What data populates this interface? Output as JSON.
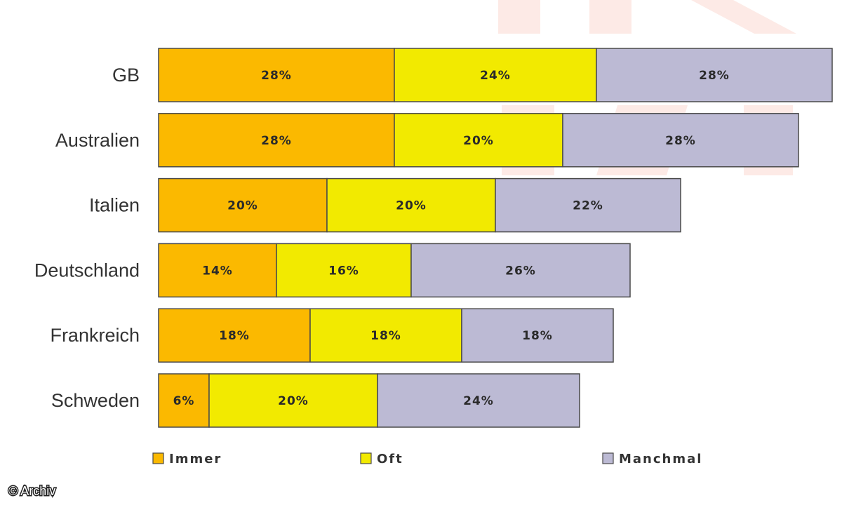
{
  "chart_data": {
    "type": "bar",
    "orientation": "horizontal",
    "stacked": true,
    "categories": [
      "GB",
      "Australien",
      "Italien",
      "Deutschland",
      "Frankreich",
      "Schweden"
    ],
    "series": [
      {
        "name": "Immer",
        "color": "#fbb900",
        "values": [
          28,
          28,
          20,
          14,
          18,
          6
        ]
      },
      {
        "name": "Oft",
        "color": "#f2ea00",
        "values": [
          24,
          20,
          20,
          16,
          18,
          20
        ]
      },
      {
        "name": "Manchmal",
        "color": "#bcbad4",
        "values": [
          28,
          28,
          22,
          26,
          18,
          24
        ]
      }
    ],
    "value_suffix": "%",
    "xlim": [
      0,
      80
    ],
    "grid": false,
    "legend_position": "bottom"
  },
  "watermark": {
    "color": "#fdeae6"
  },
  "copyright": "© Archiv"
}
